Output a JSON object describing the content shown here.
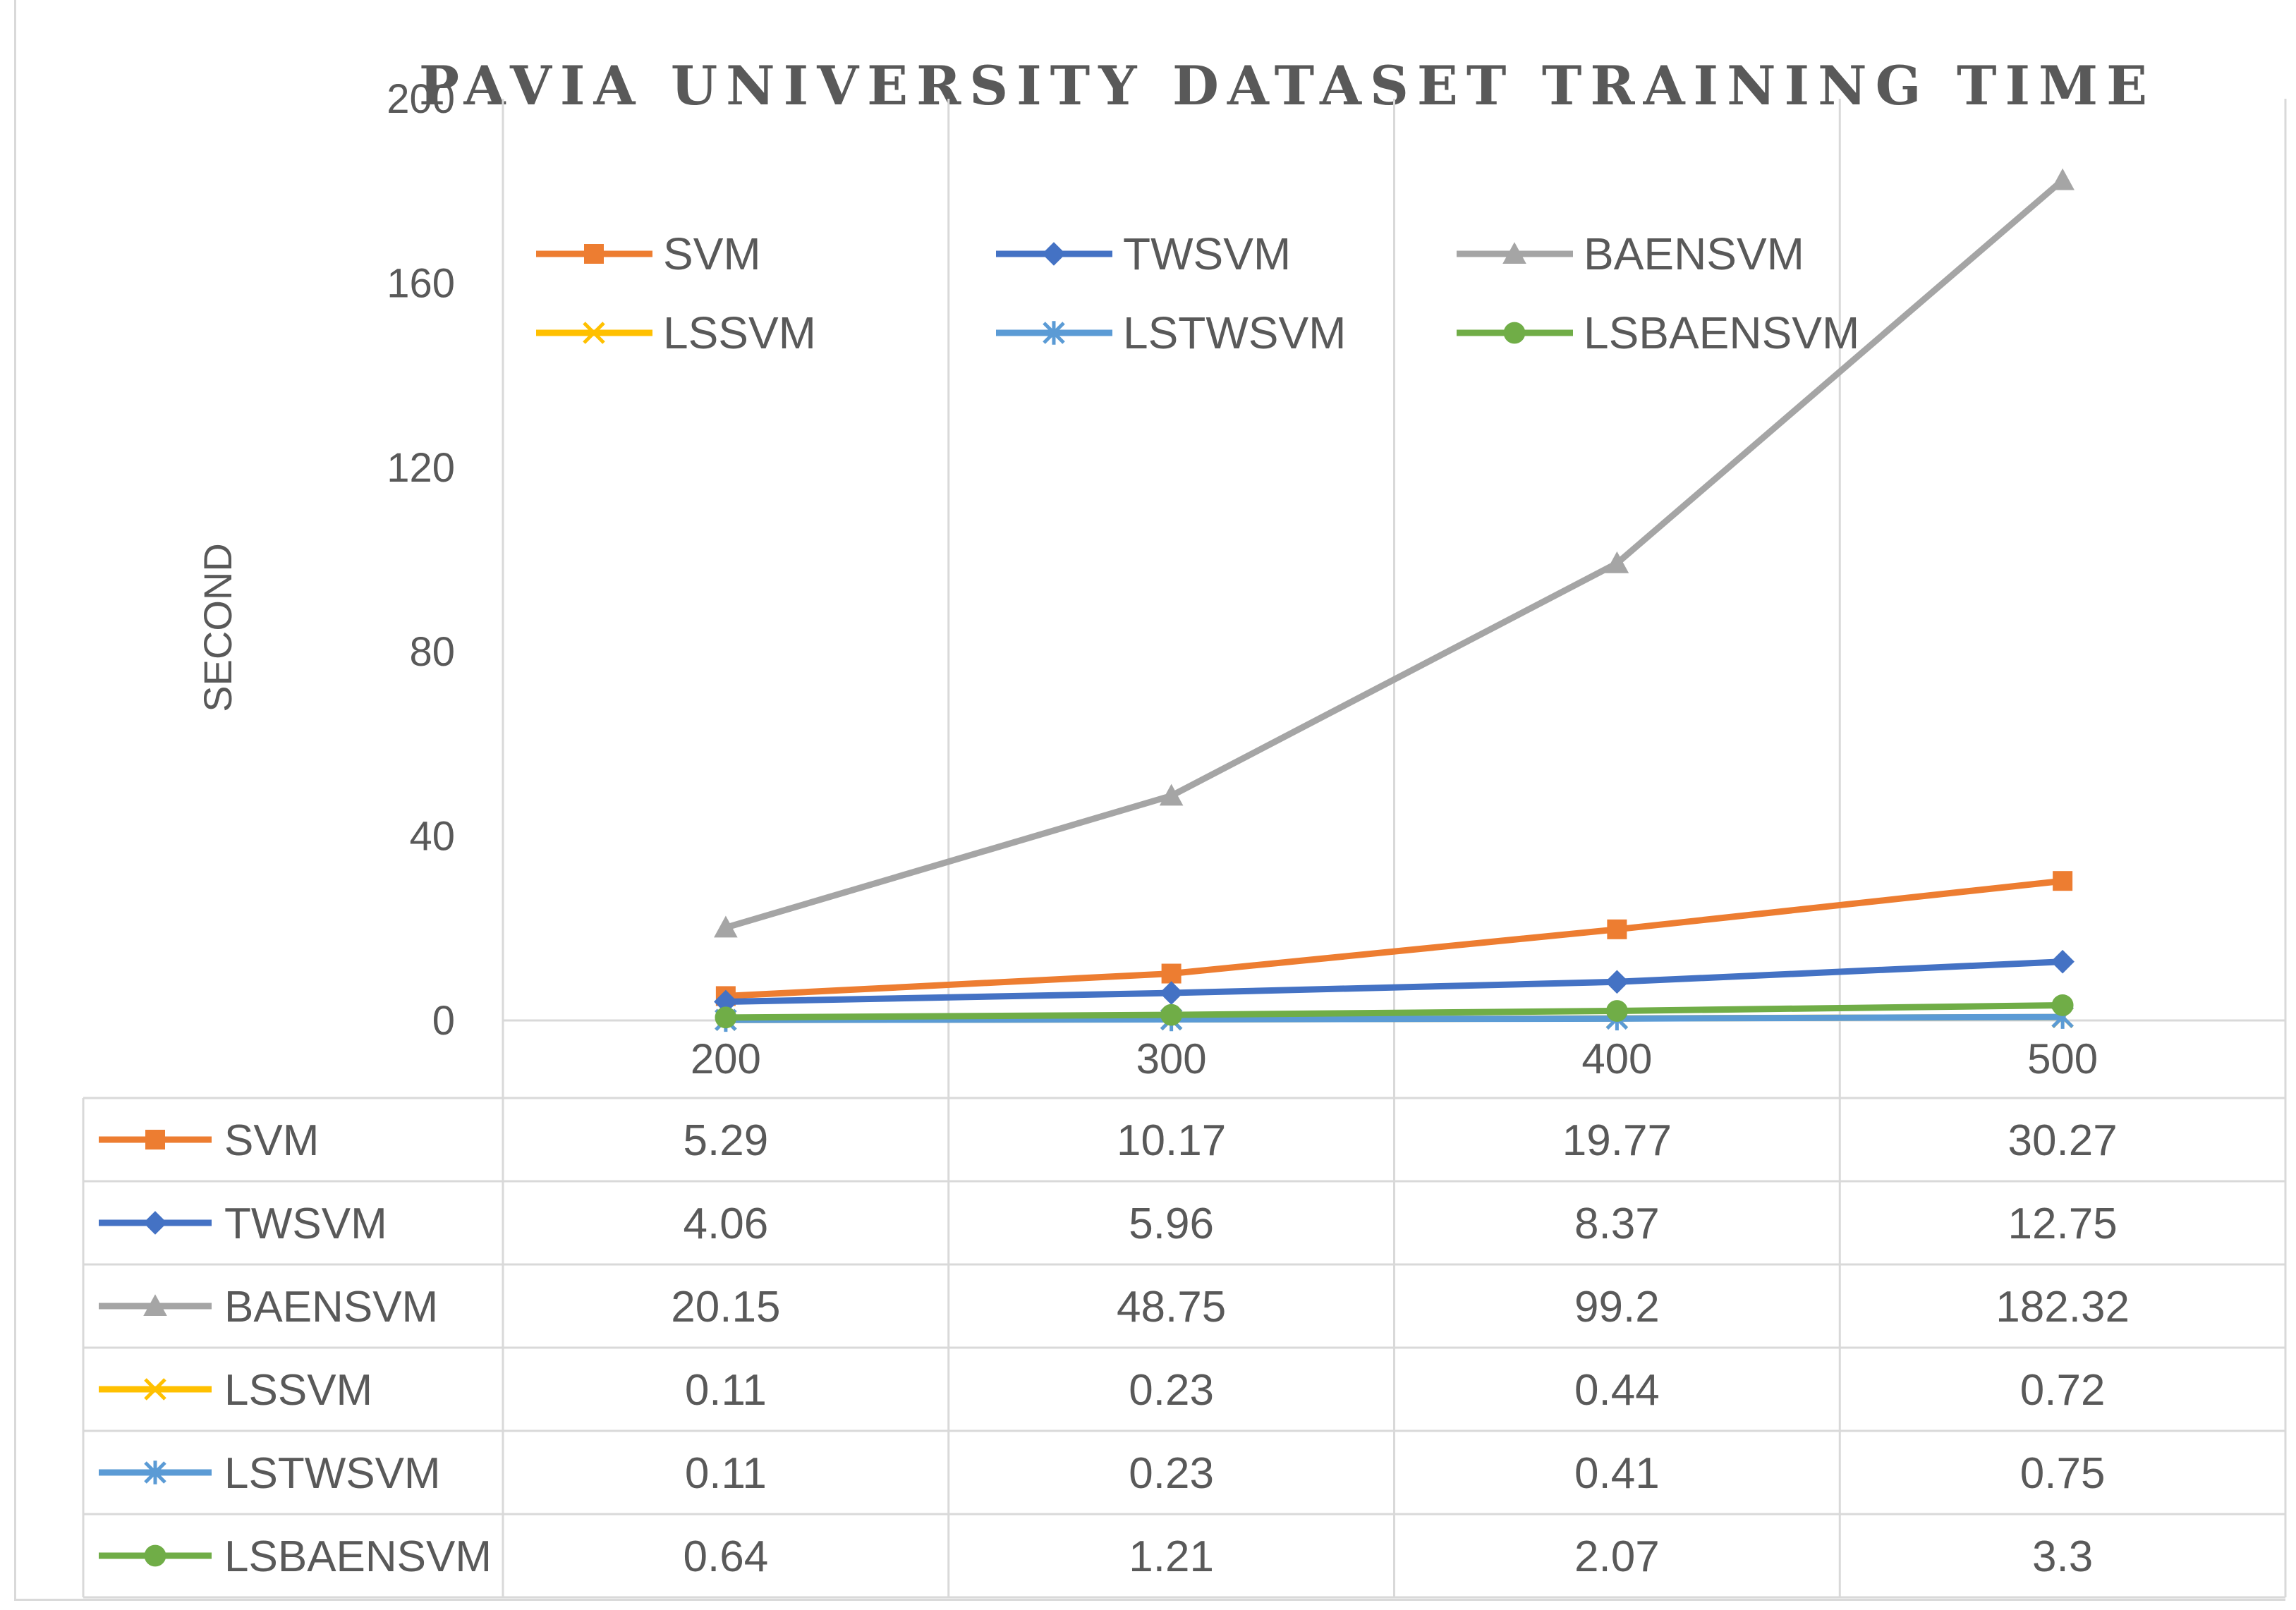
{
  "chart_data": {
    "type": "line",
    "title": "PAVIA UNIVERSITY DATASET TRAINING TIME",
    "xlabel": "",
    "ylabel": "SECOND",
    "categories": [
      "200",
      "300",
      "400",
      "500"
    ],
    "ylim": [
      0,
      200
    ],
    "yticks": [
      0,
      40,
      80,
      120,
      160,
      200
    ],
    "grid": true,
    "legend_position": "top",
    "data_table": true,
    "series": [
      {
        "name": "SVM",
        "color": "#ed7d31",
        "marker": "square",
        "values": [
          5.29,
          10.17,
          19.77,
          30.27
        ]
      },
      {
        "name": "TWSVM",
        "color": "#4472c4",
        "marker": "diamond",
        "values": [
          4.06,
          5.96,
          8.37,
          12.75
        ]
      },
      {
        "name": "BAENSVM",
        "color": "#a5a5a5",
        "marker": "triangle",
        "values": [
          20.15,
          48.75,
          99.2,
          182.32
        ]
      },
      {
        "name": "LSSVM",
        "color": "#ffc000",
        "marker": "x",
        "values": [
          0.11,
          0.23,
          0.44,
          0.72
        ]
      },
      {
        "name": "LSTWSVM",
        "color": "#5b9bd5",
        "marker": "star",
        "values": [
          0.11,
          0.23,
          0.41,
          0.75
        ]
      },
      {
        "name": "LSBAENSVM",
        "color": "#70ad47",
        "marker": "circle",
        "values": [
          0.64,
          1.21,
          2.07,
          3.3
        ]
      }
    ],
    "table_values": [
      [
        "5.29",
        "10.17",
        "19.77",
        "30.27"
      ],
      [
        "4.06",
        "5.96",
        "8.37",
        "12.75"
      ],
      [
        "20.15",
        "48.75",
        "99.2",
        "182.32"
      ],
      [
        "0.11",
        "0.23",
        "0.44",
        "0.72"
      ],
      [
        "0.11",
        "0.23",
        "0.41",
        "0.75"
      ],
      [
        "0.64",
        "1.21",
        "2.07",
        "3.3"
      ]
    ]
  }
}
